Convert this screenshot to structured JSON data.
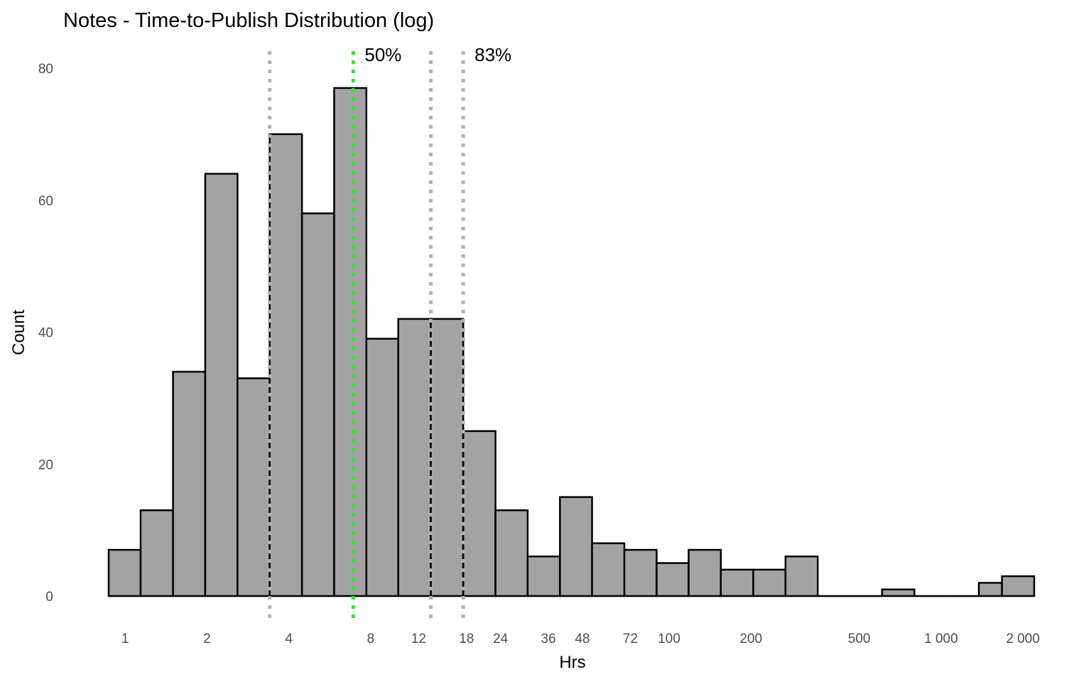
{
  "chart_data": {
    "type": "bar",
    "title": "Notes - Time-to-Publish Distribution (log)",
    "xlabel": "Hrs",
    "ylabel": "Count",
    "x_scale": "log",
    "xlim": [
      0.87,
      2200
    ],
    "ylim": [
      0,
      80
    ],
    "y_ticks": [
      0,
      20,
      40,
      60,
      80
    ],
    "x_ticks": [
      {
        "value": 1,
        "label": "1"
      },
      {
        "value": 2,
        "label": "2"
      },
      {
        "value": 4,
        "label": "4"
      },
      {
        "value": 8,
        "label": "8"
      },
      {
        "value": 12,
        "label": "12"
      },
      {
        "value": 18,
        "label": "18"
      },
      {
        "value": 24,
        "label": "24"
      },
      {
        "value": 36,
        "label": "36"
      },
      {
        "value": 48,
        "label": "48"
      },
      {
        "value": 72,
        "label": "72"
      },
      {
        "value": 100,
        "label": "100"
      },
      {
        "value": 200,
        "label": "200"
      },
      {
        "value": 500,
        "label": "500"
      },
      {
        "value": 1000,
        "label": "1 000"
      },
      {
        "value": 2000,
        "label": "2 000"
      }
    ],
    "grid": false,
    "bins": [
      {
        "x0": 0.87,
        "x1": 1.14,
        "count": 7
      },
      {
        "x0": 1.14,
        "x1": 1.5,
        "count": 13
      },
      {
        "x0": 1.5,
        "x1": 1.97,
        "count": 34
      },
      {
        "x0": 1.97,
        "x1": 2.59,
        "count": 64
      },
      {
        "x0": 2.59,
        "x1": 3.4,
        "count": 33
      },
      {
        "x0": 3.4,
        "x1": 4.47,
        "count": 70
      },
      {
        "x0": 4.47,
        "x1": 5.87,
        "count": 58
      },
      {
        "x0": 5.87,
        "x1": 7.71,
        "count": 77
      },
      {
        "x0": 7.71,
        "x1": 10.1,
        "count": 39
      },
      {
        "x0": 10.1,
        "x1": 13.3,
        "count": 42
      },
      {
        "x0": 13.3,
        "x1": 17.5,
        "count": 42
      },
      {
        "x0": 17.5,
        "x1": 23.0,
        "count": 25
      },
      {
        "x0": 23.0,
        "x1": 30.2,
        "count": 13
      },
      {
        "x0": 30.2,
        "x1": 39.7,
        "count": 6
      },
      {
        "x0": 39.7,
        "x1": 52.1,
        "count": 15
      },
      {
        "x0": 52.1,
        "x1": 68.5,
        "count": 8
      },
      {
        "x0": 68.5,
        "x1": 90.0,
        "count": 7
      },
      {
        "x0": 90.0,
        "x1": 118,
        "count": 5
      },
      {
        "x0": 118,
        "x1": 155,
        "count": 7
      },
      {
        "x0": 155,
        "x1": 204,
        "count": 4
      },
      {
        "x0": 204,
        "x1": 268,
        "count": 4
      },
      {
        "x0": 268,
        "x1": 352,
        "count": 6
      },
      {
        "x0": 352,
        "x1": 462,
        "count": 0
      },
      {
        "x0": 462,
        "x1": 607,
        "count": 0
      },
      {
        "x0": 607,
        "x1": 798,
        "count": 1
      },
      {
        "x0": 798,
        "x1": 1048,
        "count": 0
      },
      {
        "x0": 1048,
        "x1": 1377,
        "count": 0
      },
      {
        "x0": 1377,
        "x1": 1675,
        "count": 2
      },
      {
        "x0": 1675,
        "x1": 2200,
        "count": 3
      }
    ],
    "reference_lines": [
      {
        "x": 3.4,
        "style": "dotted",
        "color": "#b3b3b3"
      },
      {
        "x": 6.9,
        "style": "dotted",
        "color": "#22ee22",
        "label": "50%"
      },
      {
        "x": 13.3,
        "style": "dotted",
        "color": "#b3b3b3"
      },
      {
        "x": 17.5,
        "style": "dotted",
        "color": "#b3b3b3",
        "label": "83%"
      }
    ],
    "dashed_lines_within_bars": [
      13.3,
      17.5
    ],
    "colors": {
      "bar_fill": "#a3a3a3",
      "bar_stroke": "#000000"
    }
  }
}
